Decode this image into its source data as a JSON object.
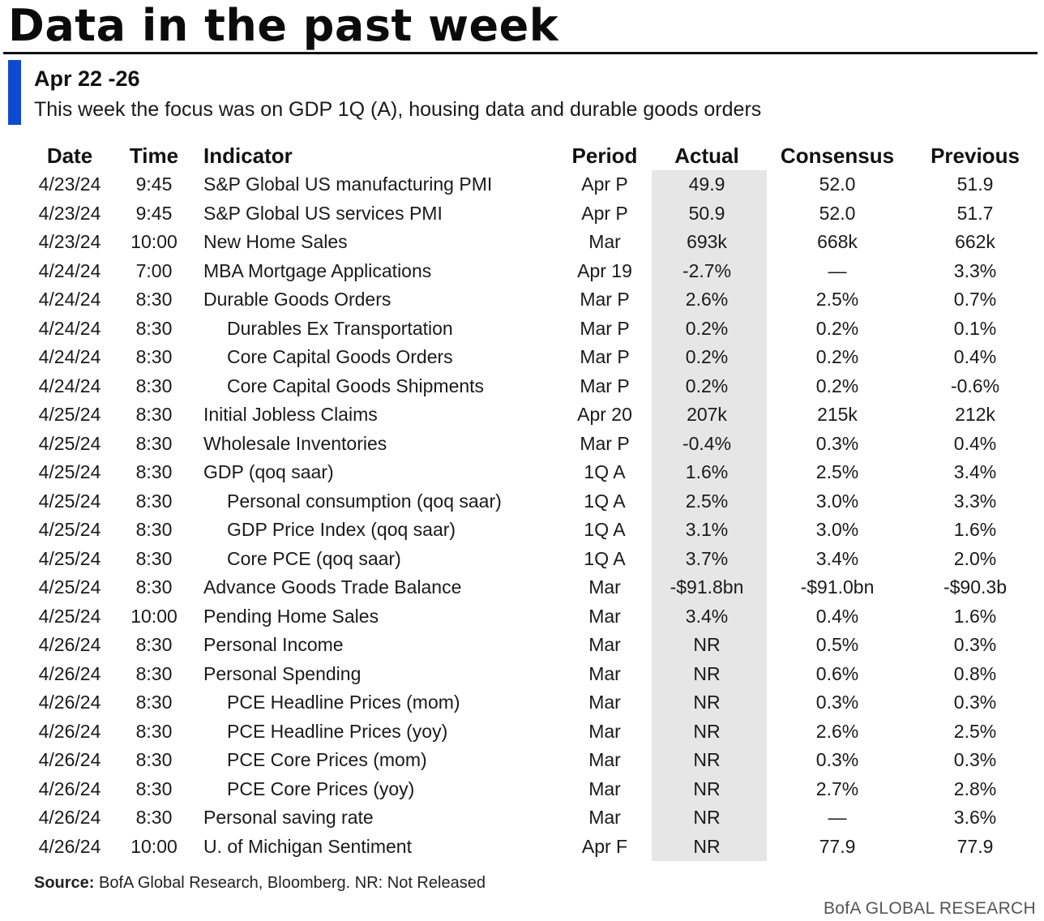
{
  "title": "Data in the past week",
  "subtitle": "Apr 22 -26",
  "description": "This week the focus was on GDP 1Q (A), housing data and durable goods orders",
  "columns": [
    "Date",
    "Time",
    "Indicator",
    "Period",
    "Actual",
    "Consensus",
    "Previous"
  ],
  "rows": [
    {
      "date": "4/23/24",
      "time": "9:45",
      "indicator": "S&P Global US manufacturing PMI",
      "period": "Apr P",
      "actual": "49.9",
      "consensus": "52.0",
      "previous": "51.9",
      "sub": false
    },
    {
      "date": "4/23/24",
      "time": "9:45",
      "indicator": "S&P Global US services PMI",
      "period": "Apr P",
      "actual": "50.9",
      "consensus": "52.0",
      "previous": "51.7",
      "sub": false
    },
    {
      "date": "4/23/24",
      "time": "10:00",
      "indicator": "New Home Sales",
      "period": "Mar",
      "actual": "693k",
      "consensus": "668k",
      "previous": "662k",
      "sub": false
    },
    {
      "date": "4/24/24",
      "time": "7:00",
      "indicator": "MBA Mortgage Applications",
      "period": "Apr 19",
      "actual": "-2.7%",
      "consensus": "—",
      "previous": "3.3%",
      "sub": false
    },
    {
      "date": "4/24/24",
      "time": "8:30",
      "indicator": "Durable Goods Orders",
      "period": "Mar P",
      "actual": "2.6%",
      "consensus": "2.5%",
      "previous": "0.7%",
      "sub": false
    },
    {
      "date": "4/24/24",
      "time": "8:30",
      "indicator": "Durables Ex Transportation",
      "period": "Mar P",
      "actual": "0.2%",
      "consensus": "0.2%",
      "previous": "0.1%",
      "sub": true
    },
    {
      "date": "4/24/24",
      "time": "8:30",
      "indicator": "Core Capital Goods Orders",
      "period": "Mar P",
      "actual": "0.2%",
      "consensus": "0.2%",
      "previous": "0.4%",
      "sub": true
    },
    {
      "date": "4/24/24",
      "time": "8:30",
      "indicator": "Core Capital Goods Shipments",
      "period": "Mar P",
      "actual": "0.2%",
      "consensus": "0.2%",
      "previous": "-0.6%",
      "sub": true
    },
    {
      "date": "4/25/24",
      "time": "8:30",
      "indicator": "Initial Jobless Claims",
      "period": "Apr 20",
      "actual": "207k",
      "consensus": "215k",
      "previous": "212k",
      "sub": false
    },
    {
      "date": "4/25/24",
      "time": "8:30",
      "indicator": "Wholesale Inventories",
      "period": "Mar P",
      "actual": "-0.4%",
      "consensus": "0.3%",
      "previous": "0.4%",
      "sub": false
    },
    {
      "date": "4/25/24",
      "time": "8:30",
      "indicator": "GDP (qoq saar)",
      "period": "1Q A",
      "actual": "1.6%",
      "consensus": "2.5%",
      "previous": "3.4%",
      "sub": false
    },
    {
      "date": "4/25/24",
      "time": "8:30",
      "indicator": "Personal consumption (qoq saar)",
      "period": "1Q A",
      "actual": "2.5%",
      "consensus": "3.0%",
      "previous": "3.3%",
      "sub": true
    },
    {
      "date": "4/25/24",
      "time": "8:30",
      "indicator": "GDP Price Index (qoq saar)",
      "period": "1Q A",
      "actual": "3.1%",
      "consensus": "3.0%",
      "previous": "1.6%",
      "sub": true
    },
    {
      "date": "4/25/24",
      "time": "8:30",
      "indicator": "Core PCE (qoq saar)",
      "period": "1Q A",
      "actual": "3.7%",
      "consensus": "3.4%",
      "previous": "2.0%",
      "sub": true
    },
    {
      "date": "4/25/24",
      "time": "8:30",
      "indicator": "Advance Goods Trade Balance",
      "period": "Mar",
      "actual": "-$91.8bn",
      "consensus": "-$91.0bn",
      "previous": "-$90.3b",
      "sub": false
    },
    {
      "date": "4/25/24",
      "time": "10:00",
      "indicator": "Pending Home Sales",
      "period": "Mar",
      "actual": "3.4%",
      "consensus": "0.4%",
      "previous": "1.6%",
      "sub": false
    },
    {
      "date": "4/26/24",
      "time": "8:30",
      "indicator": "Personal Income",
      "period": "Mar",
      "actual": "NR",
      "consensus": "0.5%",
      "previous": "0.3%",
      "sub": false
    },
    {
      "date": "4/26/24",
      "time": "8:30",
      "indicator": "Personal Spending",
      "period": "Mar",
      "actual": "NR",
      "consensus": "0.6%",
      "previous": "0.8%",
      "sub": false
    },
    {
      "date": "4/26/24",
      "time": "8:30",
      "indicator": "PCE Headline Prices (mom)",
      "period": "Mar",
      "actual": "NR",
      "consensus": "0.3%",
      "previous": "0.3%",
      "sub": true
    },
    {
      "date": "4/26/24",
      "time": "8:30",
      "indicator": "PCE Headline Prices (yoy)",
      "period": "Mar",
      "actual": "NR",
      "consensus": "2.6%",
      "previous": "2.5%",
      "sub": true
    },
    {
      "date": "4/26/24",
      "time": "8:30",
      "indicator": "PCE Core Prices (mom)",
      "period": "Mar",
      "actual": "NR",
      "consensus": "0.3%",
      "previous": "0.3%",
      "sub": true
    },
    {
      "date": "4/26/24",
      "time": "8:30",
      "indicator": "PCE Core Prices (yoy)",
      "period": "Mar",
      "actual": "NR",
      "consensus": "2.7%",
      "previous": "2.8%",
      "sub": true
    },
    {
      "date": "4/26/24",
      "time": "8:30",
      "indicator": "Personal saving rate",
      "period": "Mar",
      "actual": "NR",
      "consensus": "—",
      "previous": "3.6%",
      "sub": false
    },
    {
      "date": "4/26/24",
      "time": "10:00",
      "indicator": "U. of Michigan Sentiment",
      "period": "Apr F",
      "actual": "NR",
      "consensus": "77.9",
      "previous": "77.9",
      "sub": false
    }
  ],
  "source_label": "Source:",
  "source_text": "BofA Global Research, Bloomberg. NR: Not Released",
  "brand": "BofA GLOBAL RESEARCH",
  "colors": {
    "accent": "#0c4bd1",
    "actual_highlight": "#e6e6e6"
  }
}
